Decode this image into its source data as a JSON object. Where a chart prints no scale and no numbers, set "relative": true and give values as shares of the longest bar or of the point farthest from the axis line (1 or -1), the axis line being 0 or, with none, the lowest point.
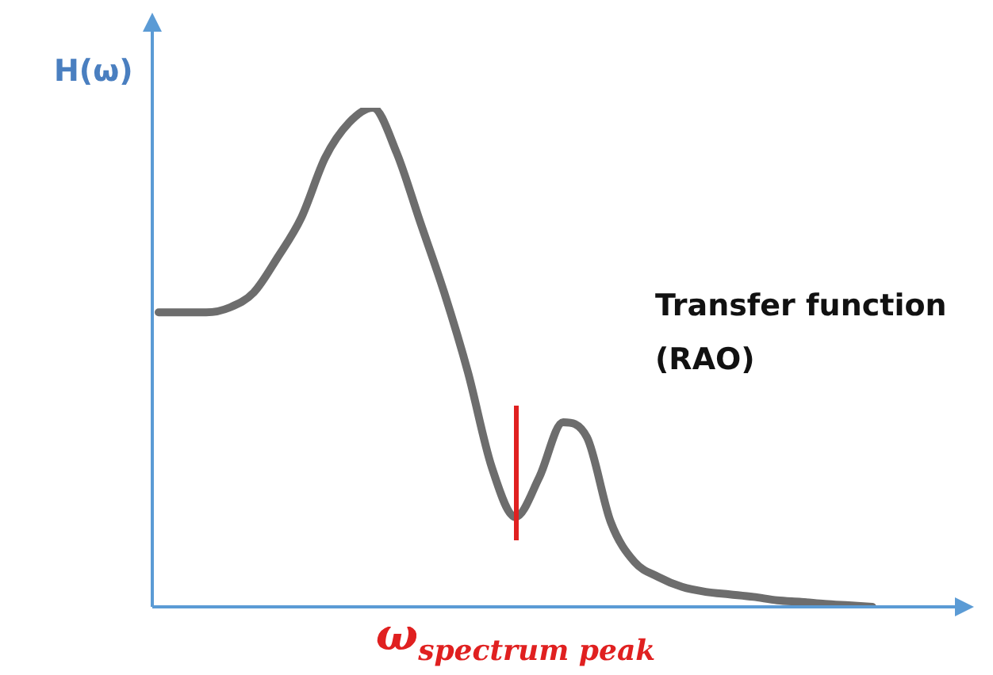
{
  "chart_data": {
    "type": "line",
    "ylabel": "H(ω)",
    "relative": true,
    "marker": "none",
    "annotations": [
      "Transfer function (RAO)",
      "ω$_{spectrum peak}$"
    ],
    "categories": [
      null,
      null,
      null,
      null,
      null,
      null,
      null,
      null,
      null,
      null,
      null,
      null,
      null,
      null,
      null,
      null,
      null,
      null,
      null,
      null,
      null,
      null,
      null,
      null,
      null,
      null,
      null,
      null,
      null,
      null,
      null
    ],
    "series": [
      {
        "color": "#6d6d6d",
        "values": [
          0.59,
          0.59,
          0.59,
          0.6,
          0.63,
          0.7,
          0.78,
          0.9,
          0.97,
          1.0,
          0.91,
          0.77,
          0.63,
          0.47,
          0.28,
          0.18,
          0.26,
          0.37,
          0.34,
          0.17,
          0.09,
          0.06,
          0.04,
          0.03,
          0.025,
          0.02,
          0.013,
          0.01,
          0.006,
          0.003,
          0
        ]
      }
    ]
  }
}
